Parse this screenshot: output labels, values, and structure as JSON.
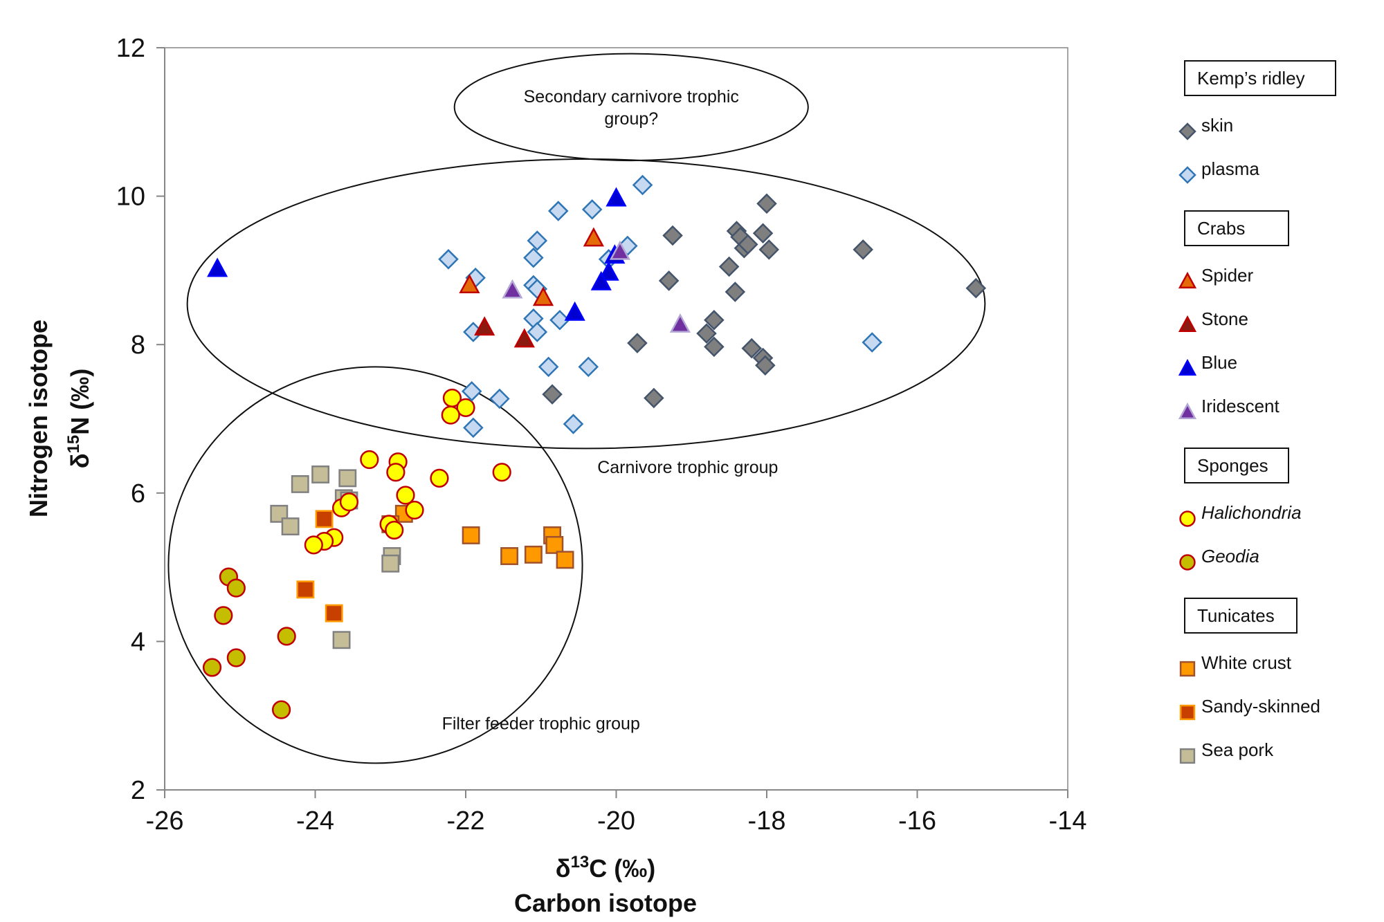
{
  "chart_data": {
    "type": "scatter",
    "title": "",
    "xlabel_line1": "δ13C (‰)",
    "xlabel_line2": "Carbon isotope",
    "ylabel_line1": "Nitrogen isotope",
    "ylabel_line2": "δ15N (‰)",
    "xlim": [
      -26,
      -14
    ],
    "ylim": [
      2,
      12
    ],
    "x_ticks": [
      -26,
      -24,
      -22,
      -20,
      -18,
      -16,
      -14
    ],
    "y_ticks": [
      2,
      4,
      6,
      8,
      10,
      12
    ],
    "grid": false,
    "legend_position": "right",
    "annotations": [
      {
        "text_lines": [
          "Secondary carnivore trophic",
          "group?"
        ],
        "center": [
          -19.8,
          11.2
        ],
        "rx": 2.35,
        "ry": 0.72
      },
      {
        "text_lines": [
          "Carnivore trophic group"
        ],
        "center": [
          -20.4,
          8.55
        ],
        "rx": 5.3,
        "ry": 1.95,
        "label_at": [
          -19.05,
          6.35
        ]
      },
      {
        "text_lines": [
          "Filter feeder trophic group"
        ],
        "center": [
          -23.2,
          5.03
        ],
        "rx": 2.75,
        "ry": 2.67,
        "label_at": [
          -21.0,
          2.9
        ]
      }
    ],
    "groups": [
      {
        "heading": "Kemp’s ridley",
        "series": [
          {
            "name": "skin",
            "marker": "diamond",
            "fill": "#7f7f7f",
            "stroke": "#44546a",
            "points": [
              [
                -19.25,
                9.47
              ],
              [
                -18.4,
                9.53
              ],
              [
                -18.35,
                9.45
              ],
              [
                -18.0,
                9.9
              ],
              [
                -18.05,
                9.5
              ],
              [
                -18.3,
                9.3
              ],
              [
                -18.25,
                9.35
              ],
              [
                -17.97,
                9.28
              ],
              [
                -16.72,
                9.28
              ],
              [
                -15.22,
                8.76
              ],
              [
                -18.5,
                9.05
              ],
              [
                -19.3,
                8.86
              ],
              [
                -18.42,
                8.71
              ],
              [
                -18.7,
                8.33
              ],
              [
                -18.8,
                8.15
              ],
              [
                -19.72,
                8.02
              ],
              [
                -18.7,
                7.97
              ],
              [
                -18.2,
                7.95
              ],
              [
                -18.05,
                7.82
              ],
              [
                -18.02,
                7.72
              ],
              [
                -20.85,
                7.33
              ],
              [
                -19.5,
                7.28
              ]
            ]
          },
          {
            "name": "plasma",
            "marker": "diamond",
            "fill": "#c6d9f1",
            "stroke": "#2e75b6",
            "points": [
              [
                -19.65,
                10.15
              ],
              [
                -20.77,
                9.8
              ],
              [
                -20.32,
                9.82
              ],
              [
                -21.05,
                9.4
              ],
              [
                -19.85,
                9.33
              ],
              [
                -22.23,
                9.15
              ],
              [
                -21.1,
                9.17
              ],
              [
                -20.1,
                9.15
              ],
              [
                -21.87,
                8.9
              ],
              [
                -21.1,
                8.8
              ],
              [
                -21.05,
                8.75
              ],
              [
                -21.1,
                8.35
              ],
              [
                -20.75,
                8.33
              ],
              [
                -21.9,
                8.17
              ],
              [
                -21.05,
                8.17
              ],
              [
                -16.6,
                8.03
              ],
              [
                -20.9,
                7.7
              ],
              [
                -20.37,
                7.7
              ],
              [
                -21.92,
                7.37
              ],
              [
                -21.55,
                7.27
              ],
              [
                -21.9,
                6.88
              ],
              [
                -20.57,
                6.93
              ]
            ]
          }
        ]
      },
      {
        "heading": "Crabs",
        "series": [
          {
            "name": "Spider",
            "marker": "triangle",
            "fill": "#e36c09",
            "stroke": "#c00000",
            "points": [
              [
                -20.3,
                9.43
              ],
              [
                -21.95,
                8.8
              ],
              [
                -20.97,
                8.63
              ]
            ]
          },
          {
            "name": "Stone",
            "marker": "triangle",
            "fill": "#8b1a10",
            "stroke": "#c00000",
            "points": [
              [
                -21.75,
                8.23
              ],
              [
                -21.22,
                8.07
              ]
            ]
          },
          {
            "name": "Blue",
            "marker": "triangle",
            "fill": "#0000d0",
            "stroke": "#0000ff",
            "points": [
              [
                -25.3,
                9.02
              ],
              [
                -20.0,
                9.97
              ],
              [
                -20.02,
                9.2
              ],
              [
                -20.1,
                8.97
              ],
              [
                -20.2,
                8.84
              ],
              [
                -20.55,
                8.43
              ]
            ]
          },
          {
            "name": "Iridescent",
            "marker": "triangle",
            "fill": "#7030a0",
            "stroke": "#b4a7d6",
            "points": [
              [
                -19.95,
                9.25
              ],
              [
                -21.38,
                8.73
              ],
              [
                -19.15,
                8.27
              ]
            ]
          }
        ]
      },
      {
        "heading": "Sponges",
        "series": [
          {
            "name": "Halichondria",
            "italic": true,
            "marker": "circle",
            "fill": "#ffff00",
            "stroke": "#c00000",
            "points": [
              [
                -22.18,
                7.28
              ],
              [
                -22.0,
                7.15
              ],
              [
                -22.2,
                7.05
              ],
              [
                -23.28,
                6.45
              ],
              [
                -22.9,
                6.42
              ],
              [
                -22.93,
                6.28
              ],
              [
                -21.52,
                6.28
              ],
              [
                -22.35,
                6.2
              ],
              [
                -22.8,
                5.97
              ],
              [
                -22.68,
                5.77
              ],
              [
                -23.65,
                5.8
              ],
              [
                -23.55,
                5.88
              ],
              [
                -23.02,
                5.58
              ],
              [
                -22.95,
                5.5
              ],
              [
                -23.75,
                5.4
              ],
              [
                -23.88,
                5.35
              ],
              [
                -24.02,
                5.3
              ]
            ]
          },
          {
            "name": "Geodia",
            "italic": true,
            "marker": "circle",
            "fill": "#c4bd00",
            "stroke": "#c00000",
            "points": [
              [
                -25.15,
                4.87
              ],
              [
                -25.05,
                4.72
              ],
              [
                -25.22,
                4.35
              ],
              [
                -24.38,
                4.07
              ],
              [
                -25.05,
                3.78
              ],
              [
                -25.37,
                3.65
              ],
              [
                -24.45,
                3.08
              ]
            ]
          }
        ]
      },
      {
        "heading": "Tunicates",
        "series": [
          {
            "name": "White crust",
            "marker": "square",
            "fill": "#ff9900",
            "stroke": "#a0522d",
            "points": [
              [
                -22.82,
                5.72
              ],
              [
                -23.0,
                5.58
              ],
              [
                -21.93,
                5.43
              ],
              [
                -20.85,
                5.43
              ],
              [
                -20.82,
                5.3
              ],
              [
                -21.42,
                5.15
              ],
              [
                -21.1,
                5.17
              ],
              [
                -20.68,
                5.1
              ]
            ]
          },
          {
            "name": "Sandy-skinned",
            "marker": "square",
            "fill": "#c84000",
            "stroke": "#ff9900",
            "points": [
              [
                -23.88,
                5.65
              ],
              [
                -24.13,
                4.7
              ],
              [
                -23.75,
                4.38
              ]
            ]
          },
          {
            "name": "Sea pork",
            "marker": "square",
            "fill": "#c4bd97",
            "stroke": "#808080",
            "points": [
              [
                -23.93,
                6.25
              ],
              [
                -24.2,
                6.12
              ],
              [
                -23.57,
                6.2
              ],
              [
                -23.62,
                5.93
              ],
              [
                -23.55,
                5.9
              ],
              [
                -24.48,
                5.72
              ],
              [
                -24.33,
                5.55
              ],
              [
                -22.98,
                5.15
              ],
              [
                -23.0,
                5.05
              ],
              [
                -23.65,
                4.02
              ]
            ]
          }
        ]
      }
    ]
  }
}
